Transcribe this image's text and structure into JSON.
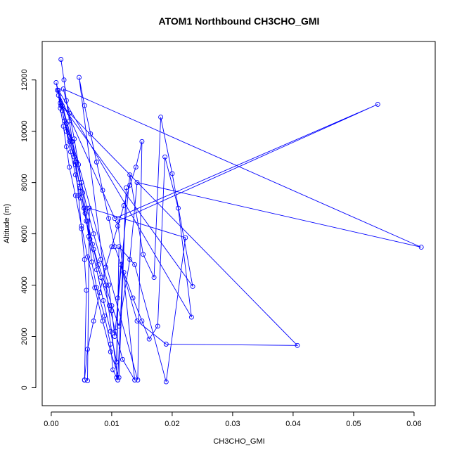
{
  "chart_data": {
    "type": "line",
    "title": "ATOM1 Northbound CH3CHO_GMI",
    "xlabel": "CH3CHO_GMI",
    "ylabel": "Altitude (m)",
    "xlim": [
      -0.0015,
      0.0635
    ],
    "ylim": [
      -700,
      13500
    ],
    "x_ticks": [
      0.0,
      0.01,
      0.02,
      0.03,
      0.04,
      0.05,
      0.06
    ],
    "x_tick_labels": [
      "0.00",
      "0.01",
      "0.02",
      "0.03",
      "0.04",
      "0.05",
      "0.06"
    ],
    "y_ticks": [
      0,
      2000,
      4000,
      6000,
      8000,
      10000,
      12000
    ],
    "y_tick_labels": [
      "0",
      "2000",
      "4000",
      "6000",
      "8000",
      "10000",
      "12000"
    ],
    "grid": false,
    "legend": "none",
    "series_color": "#0000ff",
    "markers": "open-circle",
    "x": [
      0.0016,
      0.0021,
      0.0025,
      0.003,
      0.0035,
      0.004,
      0.0045,
      0.005,
      0.0055,
      0.0058,
      0.0055,
      0.0055,
      0.006,
      0.007,
      0.008,
      0.009,
      0.01,
      0.011,
      0.012,
      0.013,
      0.014,
      0.015,
      0.0143,
      0.0008,
      0.0012,
      0.0015,
      0.002,
      0.0025,
      0.003,
      0.004,
      0.005,
      0.006,
      0.0072,
      0.0085,
      0.0098,
      0.0112,
      0.0124,
      0.011,
      0.0046,
      0.0055,
      0.0065,
      0.0075,
      0.0085,
      0.0095,
      0.0105,
      0.012,
      0.0135,
      0.015,
      0.0162,
      0.0176,
      0.0188,
      0.021,
      0.0232,
      0.0012,
      0.0018,
      0.0025,
      0.0032,
      0.004,
      0.0048,
      0.0058,
      0.0068,
      0.0078,
      0.009,
      0.01,
      0.0112,
      0.013,
      0.0142,
      0.0612,
      0.002,
      0.003,
      0.0038,
      0.0045,
      0.0052,
      0.006,
      0.007,
      0.0082,
      0.0096,
      0.0106,
      0.0118,
      0.0138,
      0.011,
      0.054,
      0.0105,
      0.001,
      0.0016,
      0.0022,
      0.003,
      0.0038,
      0.0046,
      0.0054,
      0.0064,
      0.0075,
      0.0086,
      0.0098,
      0.0108,
      0.011,
      0.0115,
      0.0142,
      0.019,
      0.0407,
      0.0018,
      0.0025,
      0.0034,
      0.0042,
      0.005,
      0.0059,
      0.007,
      0.0082,
      0.0095,
      0.01,
      0.0105,
      0.013,
      0.0152,
      0.017,
      0.0181,
      0.02,
      0.0234,
      0.0015,
      0.0022,
      0.003,
      0.004,
      0.0048,
      0.0056,
      0.0062,
      0.0067,
      0.0075,
      0.0088,
      0.0098,
      0.0102,
      0.0108,
      0.0112,
      0.0138,
      0.019,
      0.0222,
      0.0063,
      0.006
    ],
    "y": [
      12800,
      12000,
      11200,
      10400,
      9600,
      8700,
      7500,
      6200,
      5000,
      3800,
      300,
      300,
      1500,
      2600,
      3700,
      4700,
      5500,
      6300,
      7100,
      7900,
      8600,
      9600,
      300,
      11900,
      11400,
      10900,
      10200,
      9400,
      8600,
      7500,
      6300,
      5100,
      3900,
      2600,
      1400,
      400,
      7800,
      300,
      12100,
      11000,
      9900,
      8800,
      7700,
      6600,
      5500,
      4500,
      3500,
      2600,
      1900,
      2400,
      9000,
      7000,
      2750,
      11600,
      10800,
      10000,
      9200,
      8300,
      7400,
      6500,
      5600,
      4800,
      4000,
      3200,
      2400,
      5000,
      8000,
      5480,
      11650,
      10700,
      9700,
      8700,
      7600,
      6500,
      5400,
      4300,
      3200,
      2200,
      1100,
      300,
      6500,
      11050,
      6600,
      11600,
      11000,
      10400,
      9800,
      9000,
      8000,
      7000,
      5800,
      4600,
      3400,
      2200,
      1000,
      3500,
      4800,
      2600,
      1700,
      1650,
      11000,
      10300,
      9600,
      8800,
      8000,
      7000,
      6000,
      5000,
      4000,
      3000,
      2000,
      8300,
      5200,
      4300,
      10550,
      8350,
      3950,
      11100,
      10400,
      9600,
      8800,
      7800,
      6800,
      5900,
      4900,
      3900,
      2800,
      1700,
      700,
      400,
      5500,
      4800,
      230,
      5850,
      7000,
      270
    ]
  }
}
